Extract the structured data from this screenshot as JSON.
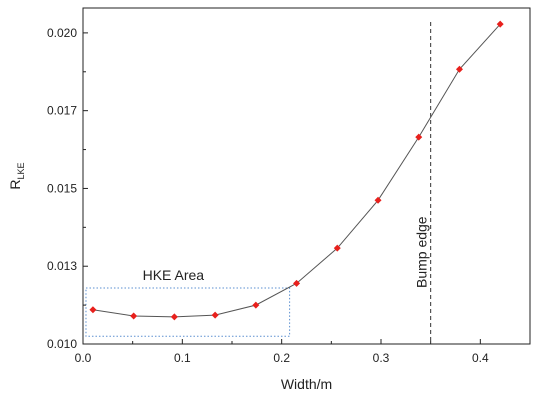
{
  "chart_data": {
    "type": "line",
    "title": "",
    "xlabel": "Width/m",
    "ylabel_main": "R",
    "ylabel_sub": "LKE",
    "xlim": [
      0.0,
      0.45
    ],
    "ylim": [
      0.01,
      0.0208
    ],
    "x_ticks": [
      0.0,
      0.1,
      0.2,
      0.3,
      0.4
    ],
    "x_tick_labels": [
      "0.0",
      "0.1",
      "0.2",
      "0.3",
      "0.4"
    ],
    "y_ticks": [
      0.01,
      0.0125,
      0.015,
      0.0175,
      0.02
    ],
    "y_tick_labels": [
      "0.010",
      "0.013",
      "0.015",
      "0.017",
      "0.020"
    ],
    "grid": false,
    "series": [
      {
        "x": [
          0.01,
          0.051,
          0.092,
          0.133,
          0.174,
          0.215,
          0.256,
          0.297,
          0.338,
          0.379,
          0.42
        ],
        "y": [
          0.0111,
          0.0109,
          0.01087,
          0.01093,
          0.01125,
          0.01195,
          0.01308,
          0.01462,
          0.01665,
          0.01883,
          0.02028
        ],
        "color": "#e8201c",
        "line_color": "#555555",
        "marker": "diamond"
      }
    ],
    "annotations": [
      {
        "text": "HKE Area",
        "box": {
          "x0": 0.003,
          "x1": 0.208,
          "y0": 0.01025,
          "y1": 0.0118
        },
        "style": "dotted",
        "color": "#5b8fd0"
      },
      {
        "text": "Bump edge",
        "vline_x": 0.35,
        "style": "dashed",
        "color": "#333333"
      }
    ]
  }
}
